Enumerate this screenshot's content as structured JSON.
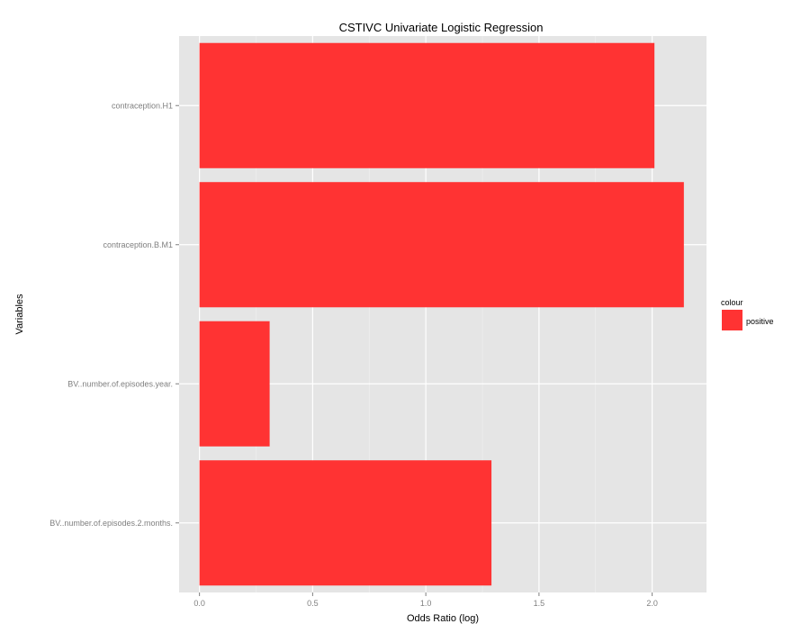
{
  "chart_data": {
    "type": "bar",
    "orientation": "horizontal",
    "title": "CSTIVC Univariate Logistic Regression",
    "xlabel": "Odds Ratio (log)",
    "ylabel": "Variables",
    "categories": [
      "contraception.H1",
      "contraception.B.M1",
      "BV..number.of.episodes.year.",
      "BV..number.of.episodes.2.months."
    ],
    "values": [
      2.01,
      2.14,
      0.31,
      1.29
    ],
    "xlim": [
      -0.09,
      2.24
    ],
    "xticks": [
      0.0,
      0.5,
      1.0,
      1.5,
      2.0
    ],
    "xtick_labels": [
      "0.0",
      "0.5",
      "1.0",
      "1.5",
      "2.0"
    ],
    "grid": true,
    "legend": {
      "title": "colour",
      "position": "right",
      "entries": [
        {
          "label": "positive",
          "color": "#ff3333"
        }
      ]
    },
    "colors": {
      "bar": "#ff3333",
      "panel_background": "#e5e5e5",
      "grid_major": "#ffffff",
      "grid_minor": "#f2f2f2"
    }
  }
}
